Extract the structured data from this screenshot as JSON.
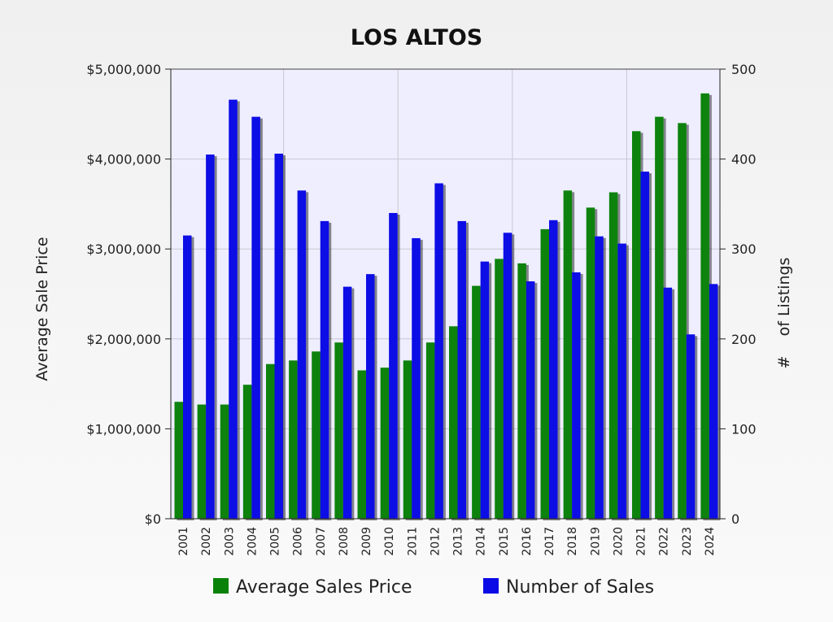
{
  "chart_data": {
    "type": "bar",
    "title": "LOS ALTOS",
    "ylabel_left": "Average Sale Price",
    "ylabel_right": "#    of Listings",
    "categories": [
      "2001",
      "2002",
      "2003",
      "2004",
      "2005",
      "2006",
      "2007",
      "2008",
      "2009",
      "2010",
      "2011",
      "2012",
      "2013",
      "2014",
      "2015",
      "2016",
      "2017",
      "2018",
      "2019",
      "2020",
      "2021",
      "2022",
      "2023",
      "2024"
    ],
    "series": [
      {
        "name": "Average Sales Price",
        "axis": "left",
        "color": "#0a820a",
        "values": [
          1300000,
          1270000,
          1270000,
          1490000,
          1720000,
          1760000,
          1860000,
          1960000,
          1650000,
          1680000,
          1760000,
          1960000,
          2140000,
          2590000,
          2890000,
          2840000,
          3220000,
          3650000,
          3460000,
          3630000,
          4310000,
          4470000,
          4400000,
          4730000
        ]
      },
      {
        "name": "Number of Sales",
        "axis": "right",
        "color": "#0a0ae6",
        "values": [
          315,
          405,
          466,
          447,
          406,
          365,
          331,
          258,
          272,
          340,
          312,
          373,
          331,
          286,
          318,
          264,
          332,
          274,
          314,
          306,
          386,
          257,
          205,
          261
        ]
      }
    ],
    "ylim_left": [
      0,
      5000000
    ],
    "yticks_left": [
      "$0",
      "$1,000,000",
      "$2,000,000",
      "$3,000,000",
      "$4,000,000",
      "$5,000,000"
    ],
    "ylim_right": [
      0,
      500
    ],
    "yticks_right": [
      "0",
      "100",
      "200",
      "300",
      "400",
      "500"
    ],
    "grid": true,
    "legend": "bottom",
    "colors": {
      "plot_background": "#eeeeff",
      "grid": "#c8c8d2"
    }
  }
}
